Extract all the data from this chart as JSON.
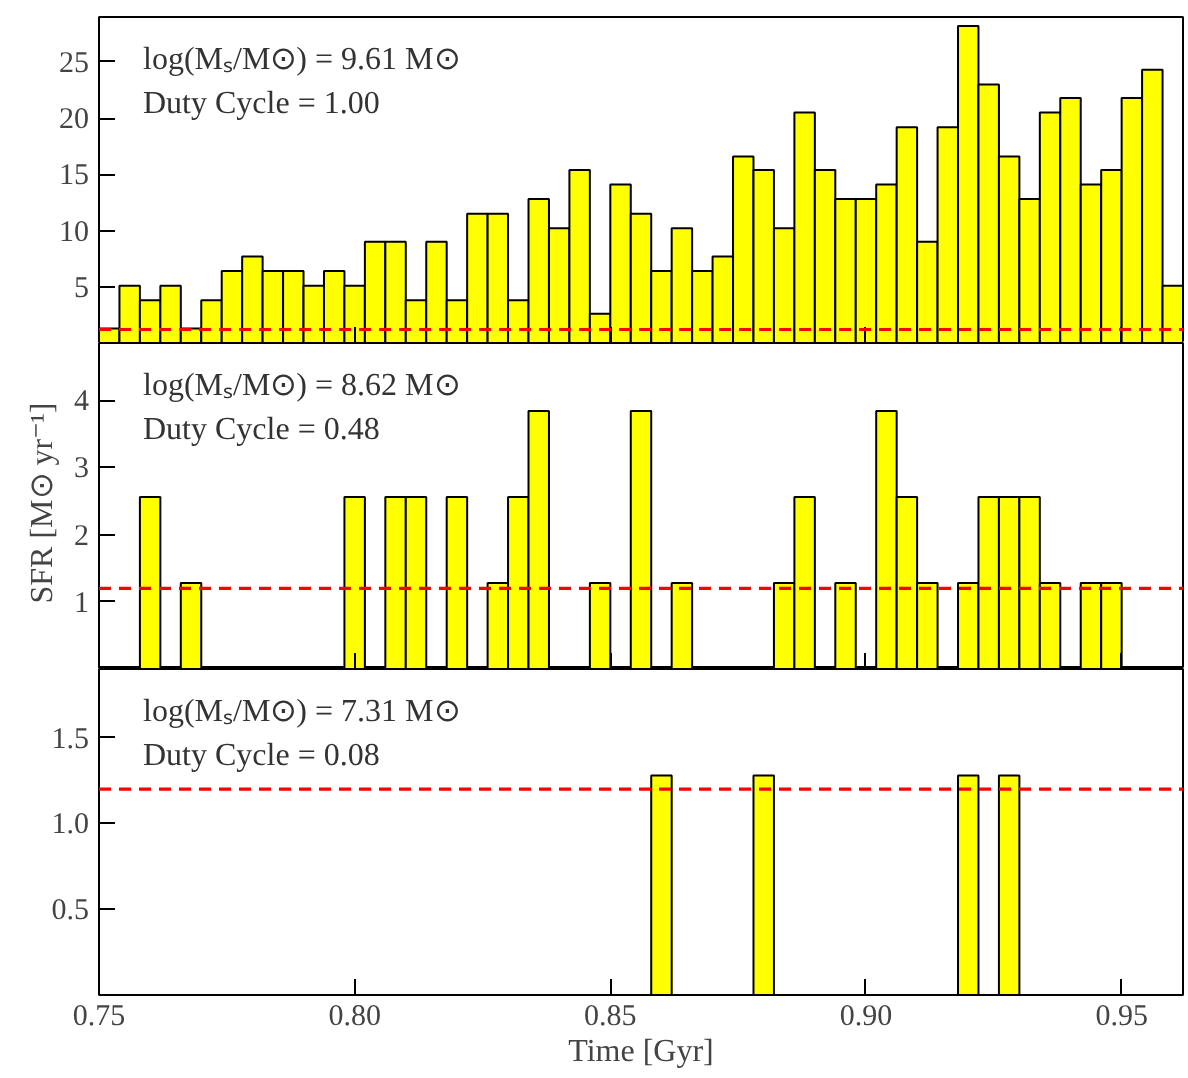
{
  "chart_data": [
    {
      "type": "histogram",
      "bins": [
        0.75,
        0.754,
        0.758,
        0.762,
        0.766,
        0.77,
        0.774,
        0.778,
        0.782,
        0.786,
        0.79,
        0.794,
        0.798,
        0.802,
        0.806,
        0.81,
        0.814,
        0.818,
        0.822,
        0.826,
        0.83,
        0.834,
        0.838,
        0.842,
        0.846,
        0.85,
        0.854,
        0.858,
        0.862,
        0.866,
        0.87,
        0.874,
        0.878,
        0.882,
        0.886,
        0.89,
        0.894,
        0.898,
        0.902,
        0.906,
        0.91,
        0.914,
        0.918,
        0.922,
        0.926,
        0.93,
        0.934,
        0.938,
        0.942,
        0.946,
        0.95,
        0.954,
        0.958,
        0.962
      ],
      "values": [
        1.3,
        5.1,
        3.8,
        5.1,
        1.3,
        3.8,
        6.4,
        7.7,
        6.4,
        6.4,
        5.1,
        6.4,
        5.1,
        9.0,
        9.0,
        3.8,
        9.0,
        3.8,
        11.5,
        11.5,
        3.8,
        12.8,
        10.2,
        15.4,
        2.6,
        14.1,
        11.5,
        6.4,
        10.2,
        6.4,
        7.7,
        16.6,
        15.4,
        10.2,
        20.5,
        15.4,
        12.8,
        12.8,
        14.1,
        19.2,
        9.0,
        19.2,
        28.2,
        23.0,
        16.6,
        12.8,
        20.5,
        21.8,
        14.1,
        15.4,
        21.8,
        24.3,
        5.1
      ],
      "color": "#ffff00",
      "xlim": [
        0.75,
        0.962
      ],
      "ylim": [
        0,
        29
      ],
      "xticks": [
        0.75,
        0.8,
        0.85,
        0.9,
        0.95
      ],
      "yticks": [
        5,
        10,
        15,
        20,
        25
      ],
      "tick_labels": "y",
      "grid": false,
      "ref_lines": [
        {
          "axis": "y",
          "value": 1.2,
          "label": null,
          "color": "#ff0000",
          "line_style": "dashed"
        }
      ],
      "annotations": [
        "log(Mₛ/M⊙) = 9.61 M⊙",
        "Duty Cycle = 1.00"
      ]
    },
    {
      "type": "histogram",
      "bins": [
        0.75,
        0.754,
        0.758,
        0.762,
        0.766,
        0.77,
        0.774,
        0.778,
        0.782,
        0.786,
        0.79,
        0.794,
        0.798,
        0.802,
        0.806,
        0.81,
        0.814,
        0.818,
        0.822,
        0.826,
        0.83,
        0.834,
        0.838,
        0.842,
        0.846,
        0.85,
        0.854,
        0.858,
        0.862,
        0.866,
        0.87,
        0.874,
        0.878,
        0.882,
        0.886,
        0.89,
        0.894,
        0.898,
        0.902,
        0.906,
        0.91,
        0.914,
        0.918,
        0.922,
        0.926,
        0.93,
        0.934,
        0.938,
        0.942,
        0.946,
        0.95,
        0.954,
        0.958,
        0.962
      ],
      "values": [
        0,
        0,
        2.56,
        0,
        1.28,
        0,
        0,
        0,
        0,
        0,
        0,
        0,
        2.56,
        0,
        2.56,
        2.56,
        0,
        2.56,
        0,
        1.28,
        2.56,
        3.84,
        0,
        0,
        1.28,
        0,
        3.84,
        0,
        1.28,
        0,
        0,
        0,
        0,
        1.28,
        2.56,
        0,
        1.28,
        0,
        3.84,
        2.56,
        1.28,
        0,
        1.28,
        2.56,
        2.56,
        2.56,
        1.28,
        0,
        1.28,
        1.28,
        0,
        0,
        0
      ],
      "color": "#ffff00",
      "xlim": [
        0.75,
        0.962
      ],
      "ylim": [
        0,
        4.85
      ],
      "xticks": [
        0.75,
        0.8,
        0.85,
        0.9,
        0.95
      ],
      "yticks": [
        1,
        2,
        3,
        4
      ],
      "tick_labels": "y",
      "grid": false,
      "ylabel": "SFR [M⊙ yr⁻¹]",
      "ref_lines": [
        {
          "axis": "y",
          "value": 1.2,
          "label": null,
          "color": "#ff0000",
          "line_style": "dashed"
        }
      ],
      "annotations": [
        "log(Mₛ/M⊙) = 8.62 M⊙",
        "Duty Cycle = 0.48"
      ]
    },
    {
      "type": "histogram",
      "bins": [
        0.75,
        0.754,
        0.758,
        0.762,
        0.766,
        0.77,
        0.774,
        0.778,
        0.782,
        0.786,
        0.79,
        0.794,
        0.798,
        0.802,
        0.806,
        0.81,
        0.814,
        0.818,
        0.822,
        0.826,
        0.83,
        0.834,
        0.838,
        0.842,
        0.846,
        0.85,
        0.854,
        0.858,
        0.862,
        0.866,
        0.87,
        0.874,
        0.878,
        0.882,
        0.886,
        0.89,
        0.894,
        0.898,
        0.902,
        0.906,
        0.91,
        0.914,
        0.918,
        0.922,
        0.926,
        0.93,
        0.934,
        0.938,
        0.942,
        0.946,
        0.95,
        0.954,
        0.958,
        0.962
      ],
      "values": [
        0,
        0,
        0,
        0,
        0,
        0,
        0,
        0,
        0,
        0,
        0,
        0,
        0,
        0,
        0,
        0,
        0,
        0,
        0,
        0,
        0,
        0,
        0,
        0,
        0,
        0,
        0,
        1.28,
        0,
        0,
        0,
        0,
        1.28,
        0,
        0,
        0,
        0,
        0,
        0,
        0,
        0,
        0,
        1.28,
        0,
        1.28,
        0,
        0,
        0,
        0,
        0,
        0,
        0,
        0
      ],
      "color": "#ffff00",
      "xlim": [
        0.75,
        0.962
      ],
      "ylim": [
        0,
        1.9
      ],
      "xticks": [
        {
          "value": 0.75,
          "label": "0.75"
        },
        {
          "value": 0.8,
          "label": "0.80"
        },
        {
          "value": 0.85,
          "label": "0.85"
        },
        {
          "value": 0.9,
          "label": "0.90"
        },
        {
          "value": 0.95,
          "label": "0.95"
        }
      ],
      "yticks": [
        {
          "value": 0.5,
          "label": "0.5"
        },
        {
          "value": 1.0,
          "label": "1.0"
        },
        {
          "value": 1.5,
          "label": "1.5"
        }
      ],
      "grid": false,
      "xlabel": "Time [Gyr]",
      "ref_lines": [
        {
          "axis": "y",
          "value": 1.2,
          "label": null,
          "color": "#ff0000",
          "line_style": "dashed"
        }
      ],
      "annotations": [
        "log(Mₛ/M⊙) = 7.31 M⊙",
        "Duty Cycle = 0.08"
      ]
    }
  ]
}
